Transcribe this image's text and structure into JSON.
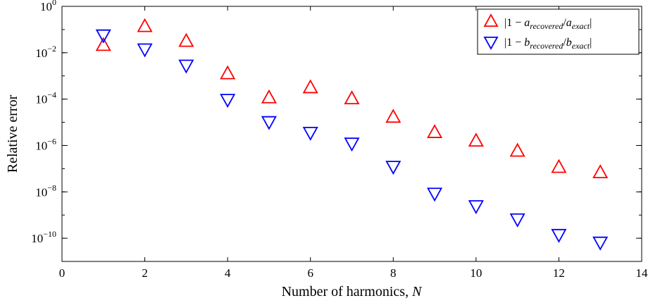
{
  "chart_data": {
    "type": "scatter",
    "xlabel_text": "Number of harmonics, ",
    "xlabel_var": "N",
    "ylabel": "Relative error",
    "xlim": [
      0,
      14
    ],
    "ylim_log10": [
      -11,
      0
    ],
    "yscale": "log",
    "x_ticks": [
      0,
      2,
      4,
      6,
      8,
      10,
      12,
      14
    ],
    "y_tick_exponents": [
      0,
      -2,
      -4,
      -6,
      -8,
      -10
    ],
    "grid": false,
    "legend_position": "top-right",
    "series": [
      {
        "legend_parts": [
          "|1 − ",
          "a",
          "recovered",
          "/",
          "a",
          "exact",
          "|"
        ],
        "marker": "triangle-up",
        "color": "#ff0000",
        "x": [
          1,
          2,
          3,
          4,
          5,
          6,
          7,
          8,
          9,
          10,
          11,
          12,
          13
        ],
        "y": [
          0.02,
          0.13,
          0.03,
          0.0012,
          0.00011,
          0.0003,
          0.0001,
          1.6e-05,
          3.5e-06,
          1.5e-06,
          5.5e-07,
          1.1e-07,
          6.5e-08
        ]
      },
      {
        "legend_parts": [
          "|1 − ",
          "b",
          "recovered",
          "/",
          "b",
          "exact",
          "|"
        ],
        "marker": "triangle-down",
        "color": "#0000ff",
        "x": [
          1,
          2,
          3,
          4,
          5,
          6,
          7,
          8,
          9,
          10,
          11,
          12,
          13
        ],
        "y": [
          0.06,
          0.015,
          0.003,
          0.0001,
          1.1e-05,
          3.8e-06,
          1.3e-06,
          1.3e-07,
          9e-09,
          2.6e-09,
          7e-10,
          1.5e-10,
          7e-11
        ]
      }
    ]
  }
}
